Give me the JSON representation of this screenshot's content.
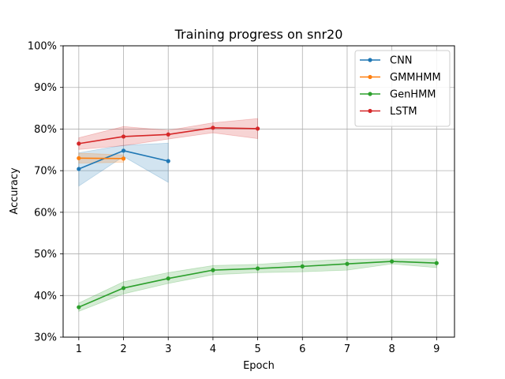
{
  "chart_data": {
    "type": "line",
    "title": "Training progress on snr20",
    "xlabel": "Epoch",
    "ylabel": "Accuracy",
    "xlim": [
      0.65,
      9.4
    ],
    "ylim": [
      30,
      100
    ],
    "xticks": [
      1,
      2,
      3,
      4,
      5,
      6,
      7,
      8,
      9
    ],
    "yticks": [
      30,
      40,
      50,
      60,
      70,
      80,
      90,
      100
    ],
    "ytick_labels": [
      "30%",
      "40%",
      "50%",
      "60%",
      "70%",
      "80%",
      "90%",
      "100%"
    ],
    "grid": true,
    "legend_position": "upper right",
    "series": [
      {
        "name": "CNN",
        "color": "#1f77b4",
        "x": [
          1,
          2,
          3
        ],
        "values": [
          70.4,
          74.8,
          72.3
        ],
        "lower": [
          66.3,
          73.4,
          67.2
        ],
        "upper": [
          74.3,
          76.1,
          76.6
        ]
      },
      {
        "name": "GMMHMM",
        "color": "#ff7f0e",
        "x": [
          1,
          2
        ],
        "values": [
          73.0,
          72.9
        ],
        "lower": [
          71.8,
          72.0
        ],
        "upper": [
          74.2,
          73.8
        ]
      },
      {
        "name": "GenHMM",
        "color": "#2ca02c",
        "x": [
          1,
          2,
          3,
          4,
          5,
          6,
          7,
          8,
          9
        ],
        "values": [
          37.2,
          41.8,
          44.1,
          46.1,
          46.5,
          47.0,
          47.6,
          48.2,
          47.8
        ],
        "lower": [
          36.2,
          40.4,
          42.9,
          45.0,
          45.5,
          45.7,
          46.1,
          47.6,
          46.7
        ],
        "upper": [
          38.2,
          43.3,
          45.5,
          47.2,
          47.5,
          48.2,
          48.7,
          48.8,
          48.8
        ]
      },
      {
        "name": "LSTM",
        "color": "#d62728",
        "x": [
          1,
          2,
          3,
          4,
          5
        ],
        "values": [
          76.5,
          78.2,
          78.7,
          80.3,
          80.1
        ],
        "lower": [
          75.1,
          76.0,
          77.6,
          79.1,
          77.7
        ],
        "upper": [
          77.9,
          80.6,
          79.7,
          81.5,
          82.5
        ]
      }
    ]
  }
}
